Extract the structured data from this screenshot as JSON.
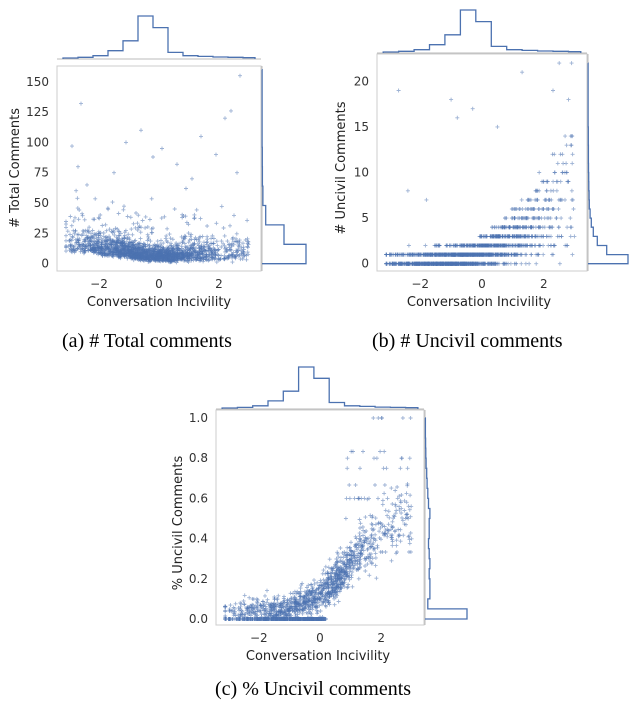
{
  "style": {
    "marker_color": "#4c72b0",
    "frame_color": "#cccccc"
  },
  "captions": {
    "a": "(a) # Total comments",
    "b": "(b) # Uncivil comments",
    "c": "(c) % Uncivil comments"
  },
  "chart_data": [
    {
      "id": "a",
      "type": "scatter",
      "marker": "+",
      "xlabel": "Conversation Incivility",
      "ylabel": "# Total Comments",
      "xlim": [
        -3.4,
        3.4
      ],
      "ylim": [
        -6,
        163
      ],
      "xticks": [
        -2,
        0,
        2
      ],
      "xtick_labels": [
        "−2",
        "0",
        "2"
      ],
      "yticks": [
        0,
        25,
        50,
        75,
        100,
        125,
        150
      ],
      "ytick_labels": [
        "0",
        "25",
        "50",
        "75",
        "100",
        "125",
        "150"
      ],
      "grid": false,
      "marginal_x_hist": {
        "bin_edges": [
          -3.2,
          -2.7,
          -2.2,
          -1.7,
          -1.2,
          -0.7,
          -0.2,
          0.3,
          0.8,
          1.3,
          1.8,
          2.3,
          2.8,
          3.2
        ],
        "counts": [
          3,
          5,
          10,
          25,
          55,
          130,
          95,
          20,
          10,
          8,
          6,
          5,
          4
        ]
      },
      "marginal_y_hist": {
        "bin_edges": [
          0,
          16,
          32,
          48,
          64,
          80,
          96,
          112,
          128,
          144,
          160
        ],
        "counts": [
          300,
          150,
          25,
          6,
          3,
          2,
          1,
          1,
          1,
          1
        ]
      },
      "outliers": [
        [
          -2.6,
          132
        ],
        [
          -2.9,
          97
        ],
        [
          -0.6,
          110
        ],
        [
          -1.1,
          100
        ],
        [
          0.1,
          95
        ],
        [
          1.4,
          105
        ],
        [
          2.4,
          126
        ],
        [
          2.7,
          155
        ],
        [
          2.2,
          120
        ],
        [
          -2.7,
          80
        ],
        [
          -0.2,
          88
        ],
        [
          0.6,
          82
        ],
        [
          1.9,
          90
        ],
        [
          2.6,
          75
        ],
        [
          -1.5,
          75
        ],
        [
          1.1,
          70
        ],
        [
          -2.4,
          65
        ],
        [
          0.9,
          62
        ]
      ]
    },
    {
      "id": "b",
      "type": "scatter",
      "marker": "+",
      "xlabel": "Conversation Incivility",
      "ylabel": "# Uncivil Comments",
      "xlim": [
        -3.4,
        3.4
      ],
      "ylim": [
        -0.8,
        23
      ],
      "xticks": [
        -2,
        0,
        2
      ],
      "xtick_labels": [
        "−2",
        "0",
        "2"
      ],
      "yticks": [
        0,
        5,
        10,
        15,
        20
      ],
      "ytick_labels": [
        "0",
        "5",
        "10",
        "15",
        "20"
      ],
      "grid": false,
      "marginal_x_hist": {
        "bin_edges": [
          -3.2,
          -2.7,
          -2.2,
          -1.7,
          -1.2,
          -0.7,
          -0.2,
          0.3,
          0.8,
          1.3,
          1.8,
          2.3,
          2.8,
          3.2
        ],
        "counts": [
          3,
          5,
          10,
          25,
          55,
          130,
          95,
          20,
          10,
          8,
          6,
          5,
          4
        ]
      },
      "marginal_y_hist": {
        "bin_edges": [
          0,
          1,
          2,
          3,
          4,
          5,
          6,
          7,
          8,
          9,
          10,
          11,
          12,
          13,
          14,
          15,
          16,
          17,
          18,
          19,
          20,
          21,
          22
        ],
        "counts": [
          300,
          140,
          70,
          40,
          25,
          16,
          10,
          8,
          6,
          5,
          4,
          3,
          3,
          2,
          2,
          1,
          1,
          1,
          1,
          1,
          1,
          1
        ]
      },
      "outliers": [
        [
          -2.7,
          19
        ],
        [
          -1.0,
          18
        ],
        [
          -0.3,
          17
        ],
        [
          1.3,
          21
        ],
        [
          2.5,
          22
        ],
        [
          2.9,
          22
        ],
        [
          2.8,
          18
        ],
        [
          -0.8,
          16
        ],
        [
          0.5,
          15
        ],
        [
          2.3,
          19
        ],
        [
          -2.4,
          8
        ],
        [
          -1.8,
          7
        ]
      ]
    },
    {
      "id": "c",
      "type": "scatter",
      "marker": "+",
      "xlabel": "Conversation Incivility",
      "ylabel": "% Uncivil Comments",
      "xlim": [
        -3.4,
        3.4
      ],
      "ylim": [
        -0.03,
        1.04
      ],
      "xticks": [
        -2,
        0,
        2
      ],
      "xtick_labels": [
        "−2",
        "0",
        "2"
      ],
      "yticks": [
        0.0,
        0.2,
        0.4,
        0.6,
        0.8,
        1.0
      ],
      "ytick_labels": [
        "0.0",
        "0.2",
        "0.4",
        "0.6",
        "0.8",
        "1.0"
      ],
      "grid": false,
      "marginal_x_hist": {
        "bin_edges": [
          -3.2,
          -2.7,
          -2.2,
          -1.7,
          -1.2,
          -0.7,
          -0.2,
          0.3,
          0.8,
          1.3,
          1.8,
          2.3,
          2.8,
          3.2
        ],
        "counts": [
          3,
          5,
          10,
          25,
          55,
          130,
          95,
          20,
          10,
          8,
          6,
          5,
          4
        ]
      },
      "marginal_y_hist": {
        "bin_edges": [
          0,
          0.05,
          0.1,
          0.15,
          0.2,
          0.25,
          0.3,
          0.35,
          0.4,
          0.45,
          0.5,
          0.55,
          0.6,
          0.65,
          0.7,
          0.75,
          0.8,
          0.85,
          0.9,
          0.95,
          1.0
        ],
        "counts": [
          300,
          20,
          35,
          35,
          30,
          35,
          30,
          25,
          30,
          30,
          35,
          25,
          20,
          15,
          12,
          8,
          6,
          4,
          3,
          3
        ]
      }
    }
  ]
}
